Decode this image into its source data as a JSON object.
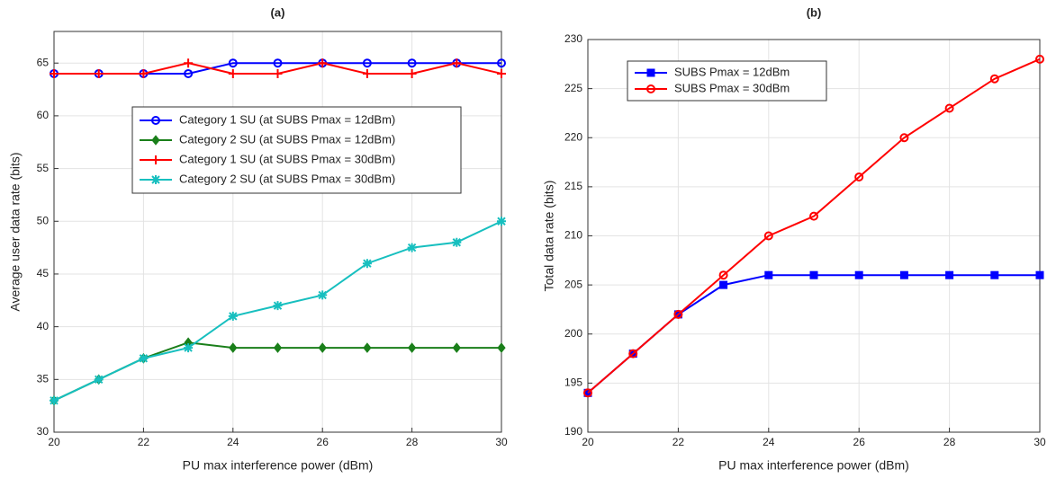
{
  "chart_data": [
    {
      "type": "line",
      "title": "(a)",
      "xlabel": "PU max interference power  (dBm)",
      "ylabel": "Average user data rate (bits)",
      "x": [
        20,
        21,
        22,
        23,
        24,
        25,
        26,
        27,
        28,
        29,
        30
      ],
      "xlim": [
        20,
        30
      ],
      "xticks": [
        20,
        22,
        24,
        26,
        28,
        30
      ],
      "ylim": [
        30,
        68
      ],
      "yticks": [
        30,
        35,
        40,
        45,
        50,
        55,
        60,
        65
      ],
      "grid": true,
      "legend": "upper right",
      "series": [
        {
          "name": "Category 1 SU (at SUBS Pmax = 12dBm)",
          "color": "#0000ff",
          "marker": "circle",
          "values": [
            64,
            64,
            64,
            64,
            65,
            65,
            65,
            65,
            65,
            65,
            65
          ]
        },
        {
          "name": "Category 2 SU (at SUBS Pmax = 12dBm)",
          "color": "#1a7f1a",
          "marker": "diamond",
          "values": [
            33,
            35,
            37,
            38.5,
            38,
            38,
            38,
            38,
            38,
            38,
            38
          ]
        },
        {
          "name": "Category 1 SU (at SUBS Pmax = 30dBm)",
          "color": "#ff0000",
          "marker": "plus",
          "values": [
            64,
            64,
            64,
            65,
            64,
            64,
            65,
            64,
            64,
            65,
            64
          ]
        },
        {
          "name": "Category 2 SU (at SUBS Pmax = 30dBm)",
          "color": "#17bfbf",
          "marker": "asterisk",
          "values": [
            33,
            35,
            37,
            38,
            41,
            42,
            43,
            46,
            47.5,
            48,
            50
          ]
        }
      ]
    },
    {
      "type": "line",
      "title": "(b)",
      "xlabel": "PU max interference power (dBm)",
      "ylabel": "Total data rate (bits)",
      "x": [
        20,
        21,
        22,
        23,
        24,
        25,
        26,
        27,
        28,
        29,
        30
      ],
      "xlim": [
        20,
        30
      ],
      "xticks": [
        20,
        22,
        24,
        26,
        28,
        30
      ],
      "ylim": [
        190,
        230
      ],
      "yticks": [
        190,
        195,
        200,
        205,
        210,
        215,
        220,
        225,
        230
      ],
      "grid": true,
      "legend": "upper left",
      "series": [
        {
          "name": "SUBS Pmax = 12dBm",
          "color": "#0000ff",
          "marker": "square",
          "values": [
            194,
            198,
            202,
            205,
            206,
            206,
            206,
            206,
            206,
            206,
            206
          ]
        },
        {
          "name": "SUBS Pmax = 30dBm",
          "color": "#ff0000",
          "marker": "circle",
          "values": [
            194,
            198,
            202,
            206,
            210,
            212,
            216,
            220,
            223,
            226,
            228
          ]
        }
      ]
    }
  ]
}
